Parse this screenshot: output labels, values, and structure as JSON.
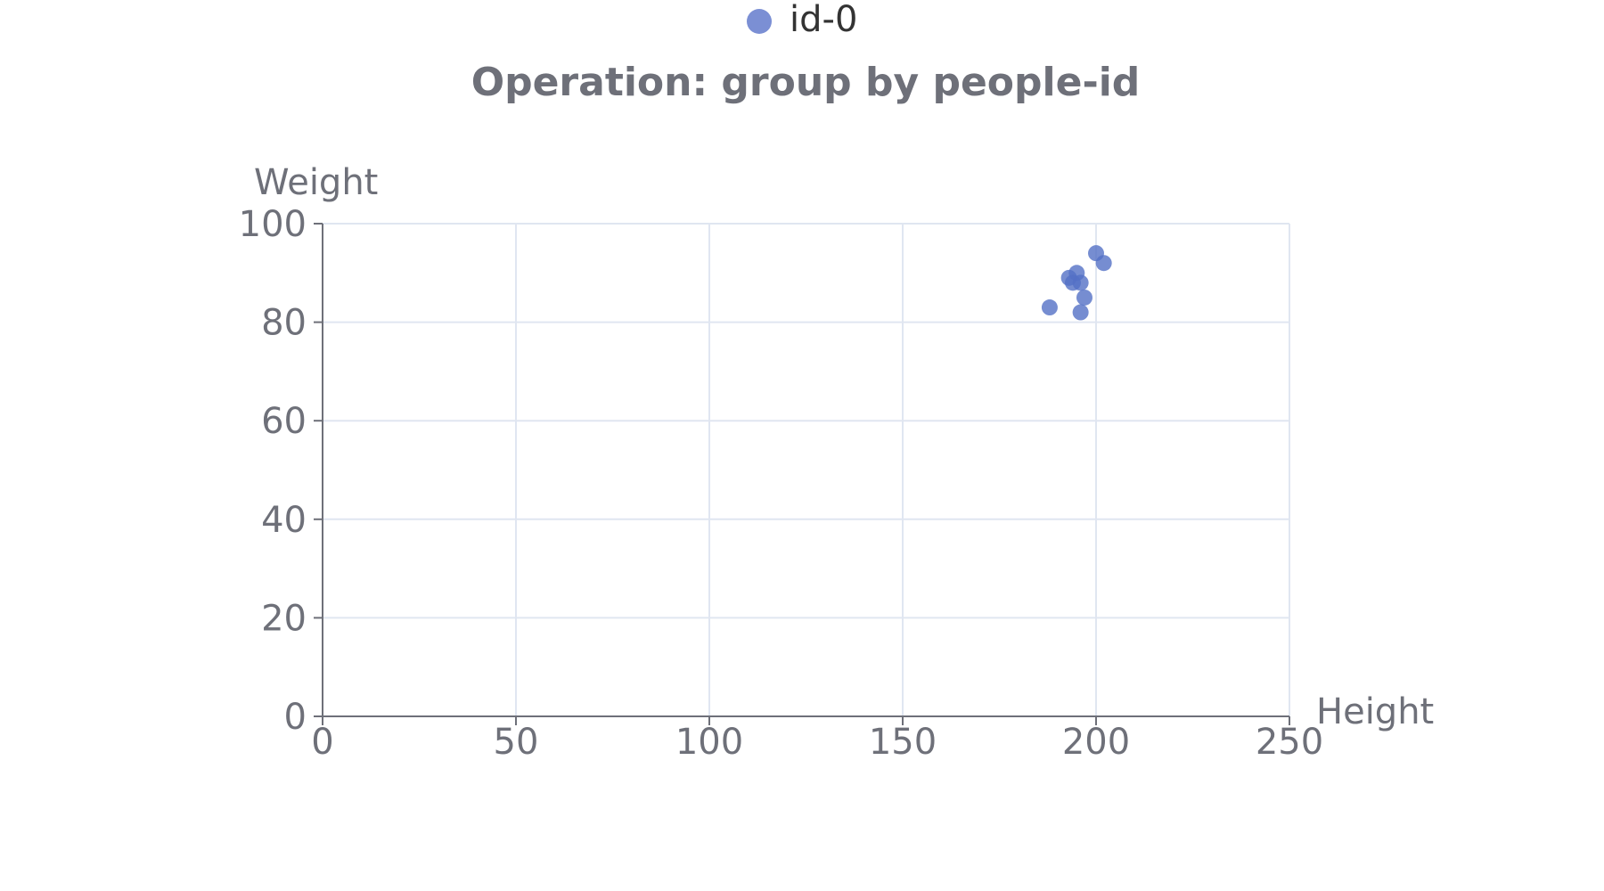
{
  "chart_data": {
    "type": "scatter",
    "title": "Operation: group by people-id",
    "xlabel": "Height",
    "ylabel": "Weight",
    "xlim": [
      0,
      250
    ],
    "ylim": [
      0,
      100
    ],
    "x_ticks": [
      0,
      50,
      100,
      150,
      200,
      250
    ],
    "y_ticks": [
      0,
      20,
      40,
      60,
      80,
      100
    ],
    "grid": true,
    "legend_position": "top-center",
    "series": [
      {
        "name": "id-0",
        "color": "#5470c6",
        "points": [
          {
            "x": 188,
            "y": 83
          },
          {
            "x": 193,
            "y": 89
          },
          {
            "x": 194,
            "y": 88
          },
          {
            "x": 195,
            "y": 90
          },
          {
            "x": 196,
            "y": 88
          },
          {
            "x": 197,
            "y": 85
          },
          {
            "x": 196,
            "y": 82
          },
          {
            "x": 200,
            "y": 94
          },
          {
            "x": 202,
            "y": 92
          }
        ]
      }
    ]
  }
}
